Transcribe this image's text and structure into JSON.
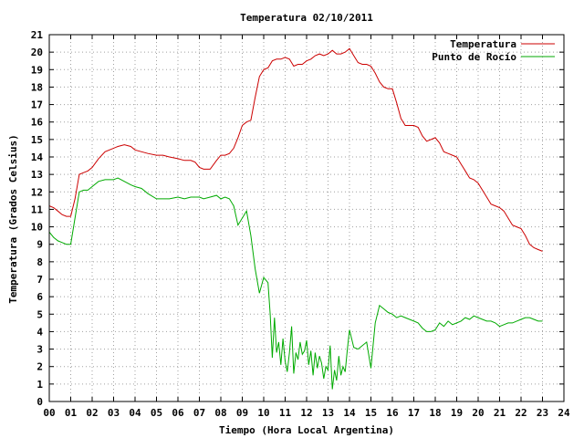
{
  "chart_data": {
    "type": "line",
    "title": "Temperatura 02/10/2011",
    "xlabel": "Tiempo (Hora Local Argentina)",
    "ylabel": "Temperatura (Grados Celsius)",
    "xlim": [
      0,
      24
    ],
    "ylim": [
      0,
      21
    ],
    "x_tick_labels": [
      "00",
      "01",
      "02",
      "03",
      "04",
      "05",
      "06",
      "07",
      "08",
      "09",
      "10",
      "11",
      "12",
      "13",
      "14",
      "15",
      "16",
      "17",
      "18",
      "19",
      "20",
      "21",
      "22",
      "23",
      "24"
    ],
    "y_tick_labels": [
      "0",
      "1",
      "2",
      "3",
      "4",
      "5",
      "6",
      "7",
      "8",
      "9",
      "10",
      "11",
      "12",
      "13",
      "14",
      "15",
      "16",
      "17",
      "18",
      "19",
      "20",
      "21"
    ],
    "grid": true,
    "legend_position": "top-right",
    "series": [
      {
        "name": "Temperatura",
        "color": "#cc0000",
        "x": [
          0,
          0.2,
          0.4,
          0.6,
          0.8,
          1.0,
          1.2,
          1.4,
          1.6,
          1.8,
          2.0,
          2.3,
          2.6,
          3.0,
          3.2,
          3.5,
          3.8,
          4.0,
          4.3,
          4.6,
          5.0,
          5.3,
          5.6,
          6.0,
          6.3,
          6.6,
          6.8,
          7.0,
          7.2,
          7.5,
          7.8,
          8.0,
          8.2,
          8.4,
          8.6,
          8.8,
          9.0,
          9.2,
          9.4,
          9.6,
          9.8,
          10.0,
          10.2,
          10.4,
          10.6,
          10.8,
          11.0,
          11.2,
          11.4,
          11.6,
          11.8,
          12.0,
          12.2,
          12.4,
          12.6,
          12.8,
          13.0,
          13.2,
          13.4,
          13.6,
          13.8,
          14.0,
          14.2,
          14.4,
          14.6,
          14.8,
          15.0,
          15.2,
          15.4,
          15.6,
          15.8,
          16.0,
          16.2,
          16.4,
          16.6,
          16.8,
          17.0,
          17.2,
          17.4,
          17.6,
          17.8,
          18.0,
          18.2,
          18.4,
          18.6,
          18.8,
          19.0,
          19.2,
          19.4,
          19.6,
          19.8,
          20.0,
          20.2,
          20.4,
          20.6,
          20.8,
          21.0,
          21.2,
          21.4,
          21.6,
          21.8,
          22.0,
          22.2,
          22.4,
          22.6,
          22.8,
          23.0
        ],
        "y": [
          11.2,
          11.1,
          10.9,
          10.7,
          10.6,
          10.6,
          11.6,
          13.0,
          13.1,
          13.2,
          13.4,
          13.9,
          14.3,
          14.5,
          14.6,
          14.7,
          14.6,
          14.4,
          14.3,
          14.2,
          14.1,
          14.1,
          14.0,
          13.9,
          13.8,
          13.8,
          13.7,
          13.4,
          13.3,
          13.3,
          13.8,
          14.1,
          14.1,
          14.2,
          14.5,
          15.1,
          15.8,
          16.0,
          16.1,
          17.4,
          18.6,
          19.0,
          19.1,
          19.5,
          19.6,
          19.6,
          19.7,
          19.6,
          19.2,
          19.3,
          19.3,
          19.5,
          19.6,
          19.8,
          19.9,
          19.8,
          19.9,
          20.1,
          19.9,
          19.9,
          20.0,
          20.2,
          19.8,
          19.4,
          19.3,
          19.3,
          19.2,
          18.8,
          18.3,
          18.0,
          17.9,
          17.9,
          17.1,
          16.2,
          15.8,
          15.8,
          15.8,
          15.7,
          15.2,
          14.9,
          15.0,
          15.1,
          14.8,
          14.3,
          14.2,
          14.1,
          14.0,
          13.6,
          13.2,
          12.8,
          12.7,
          12.5,
          12.1,
          11.7,
          11.3,
          11.2,
          11.1,
          10.9,
          10.5,
          10.1,
          10.0,
          9.9,
          9.5,
          9.0,
          8.8,
          8.7,
          8.6
        ]
      },
      {
        "name": "Punto de Rocío",
        "color": "#00aa00",
        "x": [
          0,
          0.2,
          0.4,
          0.6,
          0.8,
          1.0,
          1.2,
          1.4,
          1.6,
          1.8,
          2.0,
          2.3,
          2.6,
          3.0,
          3.2,
          3.5,
          3.8,
          4.0,
          4.3,
          4.6,
          5.0,
          5.3,
          5.6,
          6.0,
          6.3,
          6.6,
          6.8,
          7.0,
          7.2,
          7.5,
          7.8,
          8.0,
          8.2,
          8.4,
          8.6,
          8.8,
          9.0,
          9.2,
          9.4,
          9.6,
          9.8,
          10.0,
          10.2,
          10.3,
          10.4,
          10.5,
          10.6,
          10.7,
          10.8,
          10.9,
          11.0,
          11.1,
          11.2,
          11.3,
          11.4,
          11.5,
          11.6,
          11.7,
          11.8,
          11.9,
          12.0,
          12.1,
          12.2,
          12.3,
          12.4,
          12.5,
          12.6,
          12.7,
          12.8,
          12.9,
          13.0,
          13.1,
          13.2,
          13.3,
          13.4,
          13.5,
          13.6,
          13.7,
          13.8,
          13.9,
          14.0,
          14.2,
          14.4,
          14.6,
          14.8,
          15.0,
          15.2,
          15.4,
          15.6,
          15.8,
          16.0,
          16.2,
          16.4,
          16.6,
          16.8,
          17.0,
          17.2,
          17.4,
          17.6,
          17.8,
          18.0,
          18.2,
          18.4,
          18.6,
          18.8,
          19.0,
          19.2,
          19.4,
          19.6,
          19.8,
          20.0,
          20.2,
          20.4,
          20.6,
          20.8,
          21.0,
          21.2,
          21.4,
          21.6,
          21.8,
          22.0,
          22.2,
          22.4,
          22.6,
          22.8,
          23.0
        ],
        "y": [
          9.7,
          9.4,
          9.2,
          9.1,
          9.0,
          9.0,
          10.5,
          12.0,
          12.1,
          12.1,
          12.3,
          12.6,
          12.7,
          12.7,
          12.8,
          12.6,
          12.4,
          12.3,
          12.2,
          11.9,
          11.6,
          11.6,
          11.6,
          11.7,
          11.6,
          11.7,
          11.7,
          11.7,
          11.6,
          11.7,
          11.8,
          11.6,
          11.7,
          11.6,
          11.2,
          10.1,
          10.5,
          10.9,
          9.5,
          7.6,
          6.2,
          7.1,
          6.8,
          5.0,
          2.5,
          4.8,
          2.8,
          3.4,
          2.1,
          3.6,
          2.3,
          1.7,
          2.8,
          4.3,
          1.6,
          2.8,
          2.4,
          3.4,
          2.7,
          2.9,
          3.5,
          2.1,
          2.9,
          1.5,
          2.8,
          1.9,
          2.6,
          2.2,
          1.3,
          2.0,
          1.8,
          3.2,
          0.7,
          1.8,
          1.2,
          2.6,
          1.5,
          2.0,
          1.7,
          3.0,
          4.1,
          3.1,
          3.0,
          3.2,
          3.4,
          1.9,
          4.5,
          5.5,
          5.3,
          5.1,
          5.0,
          4.8,
          4.9,
          4.8,
          4.7,
          4.6,
          4.5,
          4.2,
          4.0,
          4.0,
          4.1,
          4.5,
          4.3,
          4.6,
          4.4,
          4.5,
          4.6,
          4.8,
          4.7,
          4.9,
          4.8,
          4.7,
          4.6,
          4.6,
          4.5,
          4.3,
          4.4,
          4.5,
          4.5,
          4.6,
          4.7,
          4.8,
          4.8,
          4.7,
          4.6,
          4.6
        ]
      }
    ]
  }
}
